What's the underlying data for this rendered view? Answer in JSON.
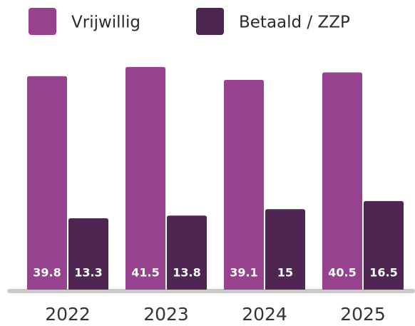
{
  "chart_data": {
    "type": "bar",
    "categories": [
      "2022",
      "2023",
      "2024",
      "2025"
    ],
    "series": [
      {
        "name": "Vrijwillig",
        "color": "#96428f",
        "values": [
          39.8,
          41.5,
          39.1,
          40.5
        ]
      },
      {
        "name": "Betaald / ZZP",
        "color": "#4f2651",
        "values": [
          13.3,
          13.8,
          15,
          16.5
        ]
      }
    ]
  }
}
